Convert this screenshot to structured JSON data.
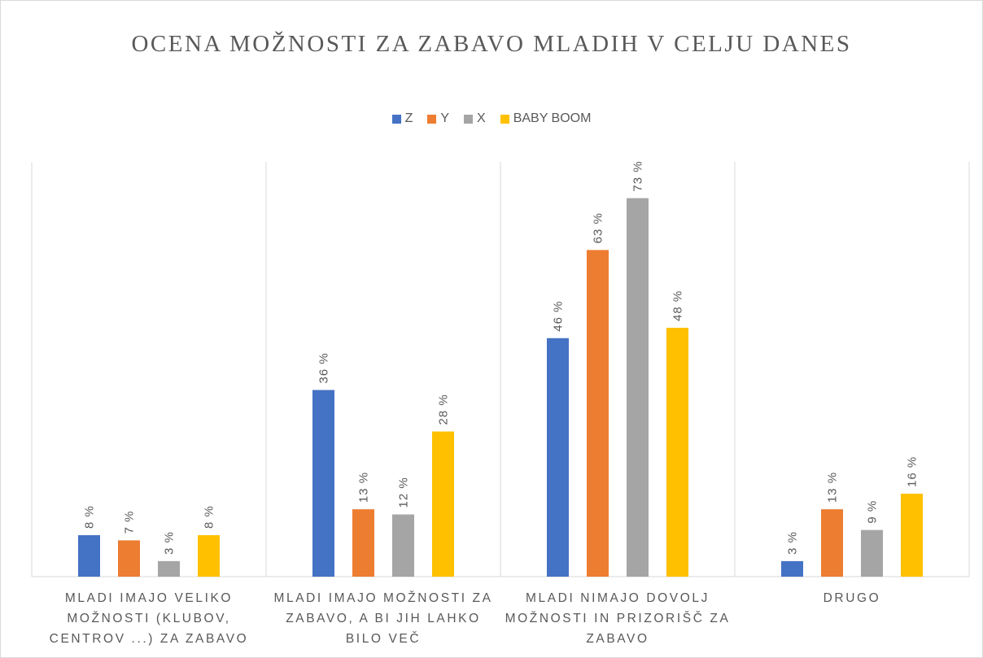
{
  "chart_data": {
    "type": "bar",
    "title": "OCENA MOŽNOSTI ZA ZABAVO MLADIH V CELJU DANES",
    "categories": [
      "MLADI IMAJO VELIKO MOŽNOSTI (KLUBOV, CENTROV ...) ZA ZABAVO",
      "MLADI IMAJO MOŽNOSTI ZA ZABAVO, A BI JIH LAHKO BILO VEČ",
      "MLADI NIMAJO DOVOLJ MOŽNOSTI IN PRIZORIŠČ ZA ZABAVO",
      "DRUGO"
    ],
    "series": [
      {
        "name": "Z",
        "color": "#4472c4",
        "values": [
          8,
          36,
          46,
          3
        ],
        "value_labels": [
          "8 %",
          "36 %",
          "46 %",
          "3 %"
        ]
      },
      {
        "name": "Y",
        "color": "#ed7d31",
        "values": [
          7,
          13,
          63,
          13
        ],
        "value_labels": [
          "7 %",
          "13 %",
          "63 %",
          "13 %"
        ]
      },
      {
        "name": "X",
        "color": "#a5a5a5",
        "values": [
          3,
          12,
          73,
          9
        ],
        "value_labels": [
          "3 %",
          "12 %",
          "73 %",
          "9 %"
        ]
      },
      {
        "name": "BABY BOOM",
        "color": "#ffc000",
        "values": [
          8,
          28,
          48,
          16
        ],
        "value_labels": [
          "8 %",
          "28 %",
          "48 %",
          "16 %"
        ]
      }
    ],
    "ylim": [
      0,
      80
    ],
    "legend": "top"
  }
}
